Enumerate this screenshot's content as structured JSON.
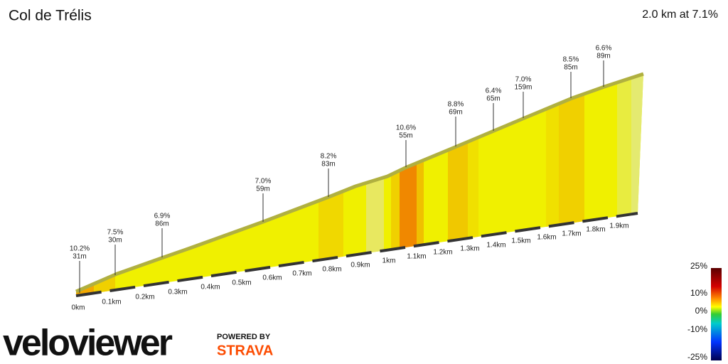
{
  "header": {
    "title": "Col de Trélis",
    "summary": "2.0 km at 7.1%"
  },
  "annotations": [
    {
      "grade": "10.2%",
      "length": "31m"
    },
    {
      "grade": "7.5%",
      "length": "30m"
    },
    {
      "grade": "6.9%",
      "length": "86m"
    },
    {
      "grade": "7.0%",
      "length": "59m"
    },
    {
      "grade": "8.2%",
      "length": "83m"
    },
    {
      "grade": "10.6%",
      "length": "55m"
    },
    {
      "grade": "8.8%",
      "length": "69m"
    },
    {
      "grade": "6.4%",
      "length": "65m"
    },
    {
      "grade": "7.0%",
      "length": "159m"
    },
    {
      "grade": "8.5%",
      "length": "85m"
    },
    {
      "grade": "6.6%",
      "length": "89m"
    }
  ],
  "distance_labels": [
    "0km",
    "0.1km",
    "0.2km",
    "0.3km",
    "0.4km",
    "0.5km",
    "0.6km",
    "0.7km",
    "0.8km",
    "0.9km",
    "1km",
    "1.1km",
    "1.2km",
    "1.3km",
    "1.4km",
    "1.5km",
    "1.6km",
    "1.7km",
    "1.8km",
    "1.9km"
  ],
  "legend": {
    "ticks": [
      "25%",
      "10%",
      "0%",
      "-10%",
      "-25%"
    ]
  },
  "branding": {
    "logo": "veloviewer",
    "powered": "POWERED BY",
    "strava": "STRAVA"
  }
}
